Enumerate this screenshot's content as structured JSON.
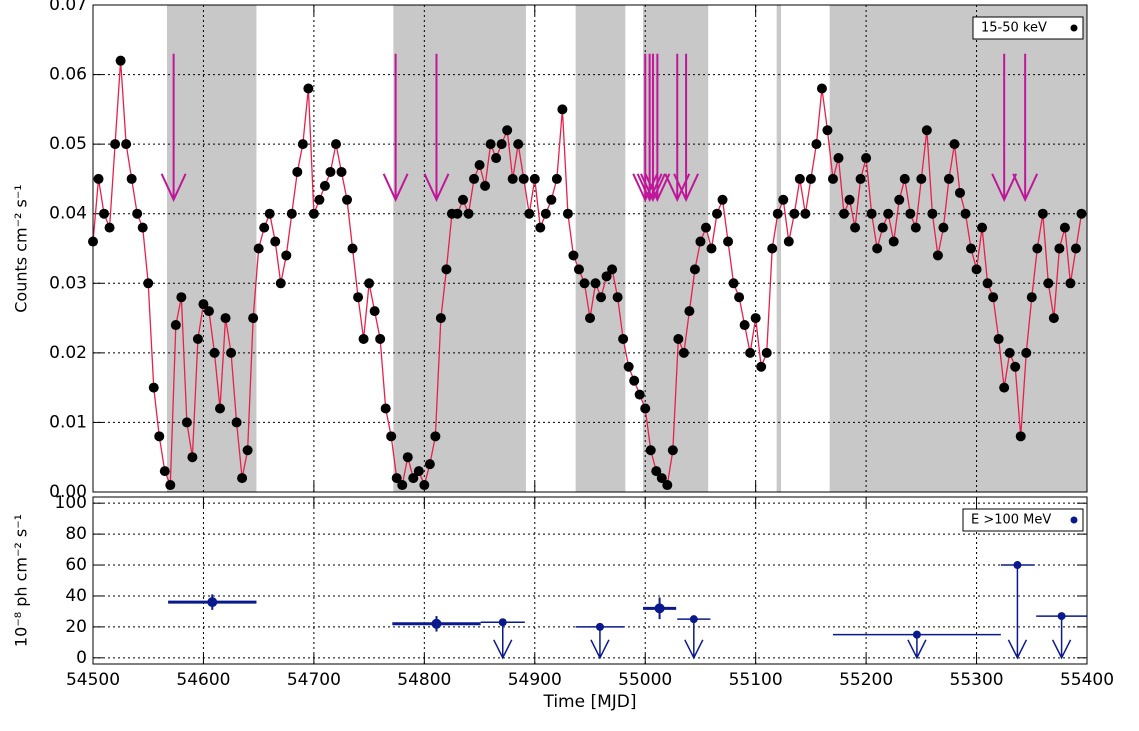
{
  "chart_data": [
    {
      "type": "line",
      "ylabel": "Counts cm⁻² s⁻¹",
      "xlim": [
        54500,
        55400
      ],
      "xticks": [
        54500,
        54600,
        54700,
        54800,
        54900,
        55000,
        55100,
        55200,
        55300,
        55400
      ],
      "ylim": [
        0,
        0.07
      ],
      "yticks": [
        {
          "value": 0,
          "label": "0.00"
        },
        {
          "value": 0.01,
          "label": "0.01"
        },
        {
          "value": 0.02,
          "label": "0.02"
        },
        {
          "value": 0.03,
          "label": "0.03"
        },
        {
          "value": 0.04,
          "label": "0.04"
        },
        {
          "value": 0.05,
          "label": "0.05"
        },
        {
          "value": 0.06,
          "label": "0.06"
        },
        {
          "value": 0.07,
          "label": "0.07"
        }
      ],
      "grid": true,
      "legend": "upper right",
      "line_color": "#e8204a",
      "shade_color": "#c8c8c8",
      "arrow_color": "#c0179a",
      "shaded_intervals": [
        [
          54567,
          54648
        ],
        [
          54772,
          54892
        ],
        [
          54937,
          54982
        ],
        [
          54998,
          55057
        ],
        [
          55119,
          55123
        ],
        [
          55167,
          55400
        ]
      ],
      "arrows": [
        54573,
        54774,
        54811,
        55000,
        55004,
        55007,
        55011,
        55029,
        55037,
        55325,
        55344
      ],
      "x": [
        54500,
        54505,
        54510,
        54515,
        54520,
        54525,
        54530,
        54535,
        54540,
        54545,
        54550,
        54555,
        54560,
        54565,
        54570,
        54575,
        54580,
        54585,
        54590,
        54595,
        54600,
        54605,
        54610,
        54615,
        54620,
        54625,
        54630,
        54635,
        54640,
        54645,
        54650,
        54655,
        54660,
        54665,
        54670,
        54675,
        54680,
        54685,
        54690,
        54695,
        54700,
        54705,
        54710,
        54715,
        54720,
        54725,
        54730,
        54735,
        54740,
        54745,
        54750,
        54755,
        54760,
        54765,
        54770,
        54775,
        54780,
        54785,
        54790,
        54795,
        54800,
        54805,
        54810,
        54815,
        54820,
        54825,
        54830,
        54835,
        54840,
        54845,
        54850,
        54855,
        54860,
        54865,
        54870,
        54875,
        54880,
        54885,
        54890,
        54895,
        54900,
        54905,
        54910,
        54915,
        54920,
        54925,
        54930,
        54935,
        54940,
        54945,
        54950,
        54955,
        54960,
        54965,
        54970,
        54975,
        54980,
        54985,
        54990,
        54995,
        55000,
        55005,
        55010,
        55015,
        55020,
        55025,
        55030,
        55035,
        55040,
        55045,
        55050,
        55055,
        55060,
        55065,
        55070,
        55075,
        55080,
        55085,
        55090,
        55095,
        55100,
        55105,
        55110,
        55115,
        55120,
        55125,
        55130,
        55135,
        55140,
        55145,
        55150,
        55155,
        55160,
        55165,
        55170,
        55175,
        55180,
        55185,
        55190,
        55195,
        55200,
        55205,
        55210,
        55215,
        55220,
        55225,
        55230,
        55235,
        55240,
        55245,
        55250,
        55255,
        55260,
        55265,
        55270,
        55275,
        55280,
        55285,
        55290,
        55295,
        55300,
        55305,
        55310,
        55315,
        55320,
        55325,
        55330,
        55335,
        55340,
        55345,
        55350,
        55355,
        55360,
        55365,
        55370,
        55375,
        55380,
        55385,
        55390,
        55395
      ],
      "series": [
        {
          "name": "15-50 keV",
          "color": "#000000",
          "values": [
            0.036,
            0.045,
            0.04,
            0.038,
            0.05,
            0.062,
            0.05,
            0.045,
            0.04,
            0.038,
            0.03,
            0.015,
            0.008,
            0.003,
            0.001,
            0.024,
            0.028,
            0.01,
            0.005,
            0.022,
            0.027,
            0.026,
            0.02,
            0.012,
            0.025,
            0.02,
            0.01,
            0.002,
            0.006,
            0.025,
            0.035,
            0.038,
            0.04,
            0.036,
            0.03,
            0.034,
            0.04,
            0.046,
            0.05,
            0.058,
            0.04,
            0.042,
            0.044,
            0.046,
            0.05,
            0.046,
            0.042,
            0.035,
            0.028,
            0.022,
            0.03,
            0.026,
            0.022,
            0.012,
            0.008,
            0.002,
            0.001,
            0.005,
            0.002,
            0.003,
            0.001,
            0.004,
            0.008,
            0.025,
            0.032,
            0.04,
            0.04,
            0.042,
            0.04,
            0.045,
            0.047,
            0.044,
            0.05,
            0.048,
            0.05,
            0.052,
            0.045,
            0.05,
            0.045,
            0.04,
            0.045,
            0.038,
            0.04,
            0.042,
            0.045,
            0.055,
            0.04,
            0.034,
            0.032,
            0.03,
            0.025,
            0.03,
            0.028,
            0.031,
            0.032,
            0.028,
            0.022,
            0.018,
            0.016,
            0.014,
            0.012,
            0.006,
            0.003,
            0.002,
            0.001,
            0.006,
            0.022,
            0.02,
            0.026,
            0.032,
            0.036,
            0.038,
            0.035,
            0.04,
            0.042,
            0.036,
            0.03,
            0.028,
            0.024,
            0.02,
            0.025,
            0.018,
            0.02,
            0.035,
            0.04,
            0.042,
            0.036,
            0.04,
            0.045,
            0.04,
            0.045,
            0.05,
            0.058,
            0.052,
            0.045,
            0.048,
            0.04,
            0.042,
            0.038,
            0.045,
            0.048,
            0.04,
            0.035,
            0.038,
            0.04,
            0.036,
            0.042,
            0.045,
            0.04,
            0.038,
            0.045,
            0.052,
            0.04,
            0.034,
            0.038,
            0.045,
            0.05,
            0.043,
            0.04,
            0.035,
            0.032,
            0.038,
            0.03,
            0.028,
            0.022,
            0.015,
            0.02,
            0.018,
            0.008,
            0.02,
            0.028,
            0.035,
            0.04,
            0.03,
            0.025,
            0.035,
            0.038,
            0.03,
            0.035,
            0.04
          ]
        }
      ]
    },
    {
      "type": "errorbar",
      "xlabel": "Time [MJD]",
      "ylabel": "10⁻⁸ ph cm⁻² s⁻¹",
      "xlim": [
        54500,
        55400
      ],
      "xticks": [
        54500,
        54600,
        54700,
        54800,
        54900,
        55000,
        55100,
        55200,
        55300,
        55400
      ],
      "ylim": [
        -4,
        104
      ],
      "yticks": [
        0,
        20,
        40,
        60,
        80,
        100
      ],
      "grid": true,
      "legend": "upper right",
      "series": [
        {
          "name": "E >100 MeV",
          "color": "#0a1a8c",
          "x": [
            54608,
            54811,
            54871,
            54959,
            55013,
            55044,
            55246,
            55337,
            55377
          ],
          "xerr": [
            40,
            40,
            20,
            22,
            15,
            15,
            76,
            15,
            23
          ],
          "values": [
            36,
            22,
            23,
            20,
            32,
            25,
            15,
            60,
            27
          ],
          "yerr": [
            5,
            5,
            null,
            null,
            7,
            null,
            null,
            null,
            null
          ],
          "upper_limit": [
            false,
            false,
            true,
            true,
            false,
            true,
            true,
            true,
            true
          ]
        }
      ]
    }
  ]
}
